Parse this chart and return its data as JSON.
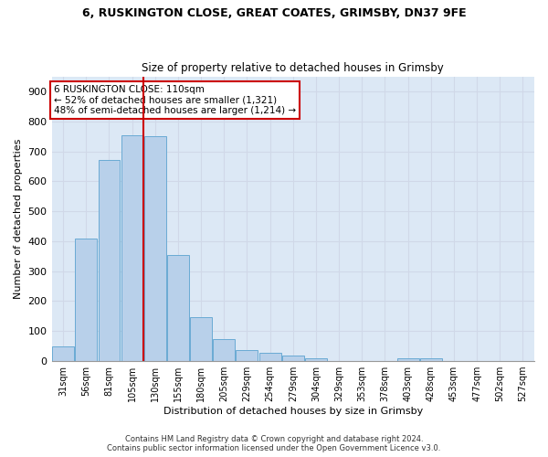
{
  "title_line1": "6, RUSKINGTON CLOSE, GREAT COATES, GRIMSBY, DN37 9FE",
  "title_line2": "Size of property relative to detached houses in Grimsby",
  "xlabel": "Distribution of detached houses by size in Grimsby",
  "ylabel": "Number of detached properties",
  "footer_line1": "Contains HM Land Registry data © Crown copyright and database right 2024.",
  "footer_line2": "Contains public sector information licensed under the Open Government Licence v3.0.",
  "categories": [
    "31sqm",
    "56sqm",
    "81sqm",
    "105sqm",
    "130sqm",
    "155sqm",
    "180sqm",
    "205sqm",
    "229sqm",
    "254sqm",
    "279sqm",
    "304sqm",
    "329sqm",
    "353sqm",
    "378sqm",
    "403sqm",
    "428sqm",
    "453sqm",
    "477sqm",
    "502sqm",
    "527sqm"
  ],
  "values": [
    48,
    410,
    670,
    752,
    750,
    355,
    148,
    72,
    37,
    28,
    18,
    10,
    0,
    0,
    0,
    8,
    10,
    0,
    0,
    0,
    0
  ],
  "bar_color": "#b8d0ea",
  "bar_edge_color": "#6aaad4",
  "grid_color": "#d0d8e8",
  "bg_color": "#dce8f5",
  "vline_color": "#cc0000",
  "annotation_text": "6 RUSKINGTON CLOSE: 110sqm\n← 52% of detached houses are smaller (1,321)\n48% of semi-detached houses are larger (1,214) →",
  "annotation_box_color": "#cc0000",
  "ylim": [
    0,
    950
  ],
  "yticks": [
    0,
    100,
    200,
    300,
    400,
    500,
    600,
    700,
    800,
    900
  ],
  "vline_index": 3.5
}
